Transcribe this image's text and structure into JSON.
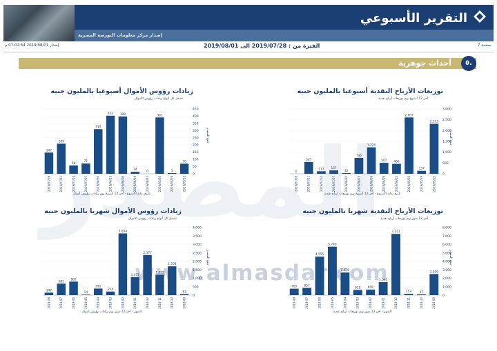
{
  "header": {
    "title": "التقرير الأسبوعي",
    "subtitle": "إصدار مركز معلومات البورصة المصرية"
  },
  "info": {
    "page": "صفحة 7",
    "period": "الفترة من : 2019/07/28 الى 2019/08/01",
    "issued": "إصدار 2019/08/01 07:02:54 م"
  },
  "section": {
    "number": "٥.",
    "title": "أحداث جوهرية"
  },
  "watermark": {
    "text": "www.almasdar.com",
    "logo_text": "المصدر"
  },
  "colors": {
    "bar": "#1a4c85",
    "header": "#1c3f73",
    "section": "#c9b774",
    "text": "#1f3c68"
  },
  "chart_data": [
    {
      "type": "bar",
      "title": "زيادات رؤوس الأموال أسبوعيا بالمليون جنيه",
      "subtitle": "تشمل كل أنواع زيادات رؤوس الأموال",
      "xlabel": "تاريخ بداية الأسبوع - آخر 12 أسبوع بهم زيادات رؤوس أموال",
      "ylabel": "جمع المصدر",
      "categories": [
        "2019/07/28",
        "2019/07/21",
        "2019/07/14",
        "2019/07/07",
        "2019/06/30",
        "2019/06/23",
        "2019/06/16",
        "2019/06/09",
        "2019/06/02",
        "2019/05/26",
        "2019/05/19",
        "2019/05/12"
      ],
      "values": [
        147,
        209,
        58,
        71,
        310,
        403,
        398,
        14,
        0,
        391,
        5,
        70
      ],
      "labels": [
        "147",
        "209",
        "58",
        "71",
        "310",
        "403",
        "398",
        "14",
        "0",
        "391",
        "5",
        "70"
      ],
      "yticks": [
        "0",
        "50",
        "100",
        "150",
        "200",
        "250",
        "300",
        "350",
        "400",
        "450"
      ],
      "ylim": [
        0,
        450
      ]
    },
    {
      "type": "bar",
      "title": "توزيعات الأرباح النقدية أسبوعيا بالمليون جنيه",
      "subtitle": "آخر 12 أسبوع بهم توزيعات أرباح نقدية",
      "xlabel": "تاريخ بداية الأسبوع - آخر 12 أسبوع بهم توزيعات أرباح نقدية",
      "ylabel": "جمع المصدر",
      "categories": [
        "2019/07/28",
        "2019/07/21",
        "2019/07/14",
        "2019/07/07",
        "2019/06/30",
        "2019/06/23",
        "2019/06/16",
        "2019/06/09",
        "2019/06/02",
        "2019/05/26",
        "2019/05/19",
        "2019/05/12"
      ],
      "values": [
        0,
        547,
        117,
        157,
        32,
        736,
        1224,
        507,
        460,
        2607,
        137,
        2313
      ],
      "labels": [
        "0",
        "547",
        "117",
        "157",
        "32",
        "736",
        "1,224",
        "507",
        "460",
        "2,607",
        "137",
        "2,313"
      ],
      "yticks": [
        "0",
        "500",
        "1,000",
        "1,500",
        "2,000",
        "2,500",
        "3,000"
      ],
      "ylim": [
        0,
        3000
      ]
    },
    {
      "type": "bar",
      "title": "زيادات رؤوس الأموال شهريا بالمليون جنيه",
      "subtitle": "تشمل كل أنواع زيادات رؤوس الأموال",
      "xlabel": "الشهر - آخر 12 شهر بهم زيادات رؤوس اموال",
      "ylabel": "جمع المصدر",
      "categories": [
        "2019-08",
        "2019-07",
        "2019-06",
        "2019-05",
        "2019-04",
        "2019-03",
        "2019-02",
        "2019-01",
        "2018-12",
        "2018-11",
        "2018-10",
        "2018-09"
      ],
      "values": [
        147,
        681,
        802,
        14,
        391,
        214,
        3654,
        1071,
        2377,
        1212,
        1708,
        63
      ],
      "labels": [
        "147",
        "681",
        "802",
        "14",
        "391",
        "214",
        "3,654",
        "1,071",
        "2,377",
        "1,212",
        "1,708",
        "63"
      ],
      "yticks": [
        "0",
        "500",
        "1,000",
        "1,500",
        "2,000",
        "2,500",
        "3,000",
        "3,500",
        "4,000"
      ],
      "ylim": [
        0,
        4000
      ]
    },
    {
      "type": "bar",
      "title": "توزيعات الأرباح النقدية شهريا بالمليون جنيه",
      "subtitle": "آخر 12 شهر بهم توزيعات أرباح نقدية",
      "xlabel": "الشهر - آخر 12 شهر بهم توزيعات أرباح نقدية",
      "ylabel": "جمع المصدر",
      "categories": [
        "2019-08",
        "2019-07",
        "2019-06",
        "2019-05",
        "2019-04",
        "2019-03",
        "2019-02",
        "2019-01",
        "2018-12",
        "2018-11",
        "2018-10",
        "2018-09"
      ],
      "values": [
        765,
        857,
        4555,
        5740,
        2676,
        619,
        659,
        1545,
        7251,
        153,
        97,
        2500
      ],
      "labels": [
        "765",
        "857",
        "4,555",
        "5,740",
        "2,676",
        "619",
        "659",
        "1,545",
        "7,251",
        "153",
        "97",
        "2,500"
      ],
      "yticks": [
        "0",
        "1,000",
        "2,000",
        "3,000",
        "4,000",
        "5,000",
        "6,000",
        "7,000",
        "8,000"
      ],
      "ylim": [
        0,
        8000
      ]
    }
  ]
}
